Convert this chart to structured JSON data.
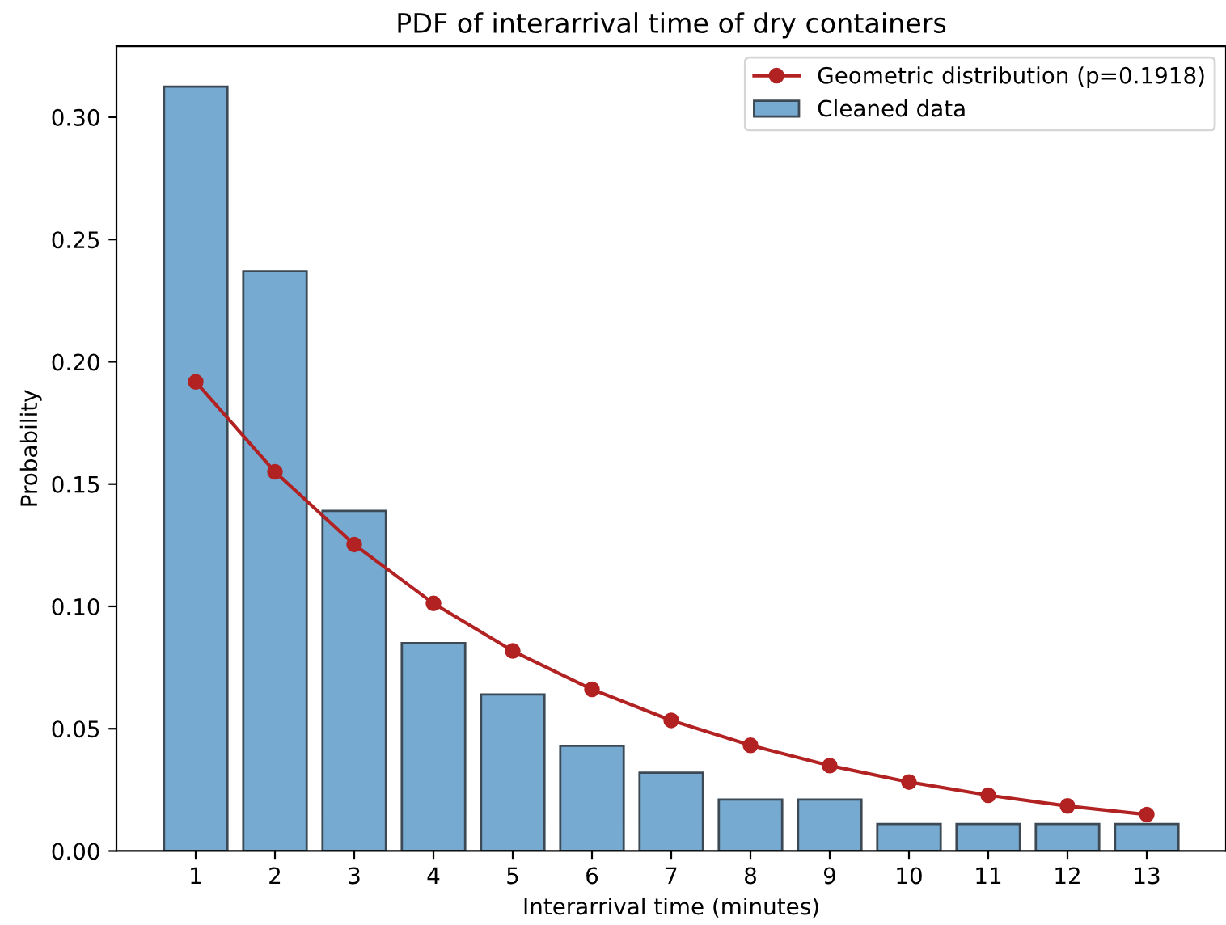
{
  "chart_data": {
    "type": "bar",
    "title": "PDF of interarrival time of dry containers",
    "xlabel": "Interarrival time (minutes)",
    "ylabel": "Probability",
    "x": [
      1,
      2,
      3,
      4,
      5,
      6,
      7,
      8,
      9,
      10,
      11,
      12,
      13
    ],
    "series": [
      {
        "name": "Geometric distribution (p=0.1918)",
        "type": "line",
        "color": "#b22222",
        "marker": "circle",
        "values": [
          0.1918,
          0.155,
          0.1253,
          0.1012,
          0.0818,
          0.0661,
          0.0534,
          0.0432,
          0.0349,
          0.0282,
          0.0228,
          0.0184,
          0.0149
        ]
      },
      {
        "name": "Cleaned data",
        "color": "#76aad1",
        "values": [
          0.3125,
          0.237,
          0.139,
          0.085,
          0.064,
          0.043,
          0.032,
          0.021,
          0.021,
          0.011,
          0.011,
          0.011,
          0.011
        ]
      }
    ],
    "xlim": [
      0,
      14
    ],
    "ylim": [
      0,
      0.329
    ],
    "xticks": [
      1,
      2,
      3,
      4,
      5,
      6,
      7,
      8,
      9,
      10,
      11,
      12,
      13
    ],
    "yticks": [
      {
        "value": 0,
        "label": "0.00"
      },
      {
        "value": 0.05,
        "label": "0.05"
      },
      {
        "value": 0.1,
        "label": "0.10"
      },
      {
        "value": 0.15,
        "label": "0.15"
      },
      {
        "value": 0.2,
        "label": "0.20"
      },
      {
        "value": 0.25,
        "label": "0.25"
      },
      {
        "value": 0.3,
        "label": "0.30"
      }
    ],
    "legend": "top right",
    "grid": false
  }
}
